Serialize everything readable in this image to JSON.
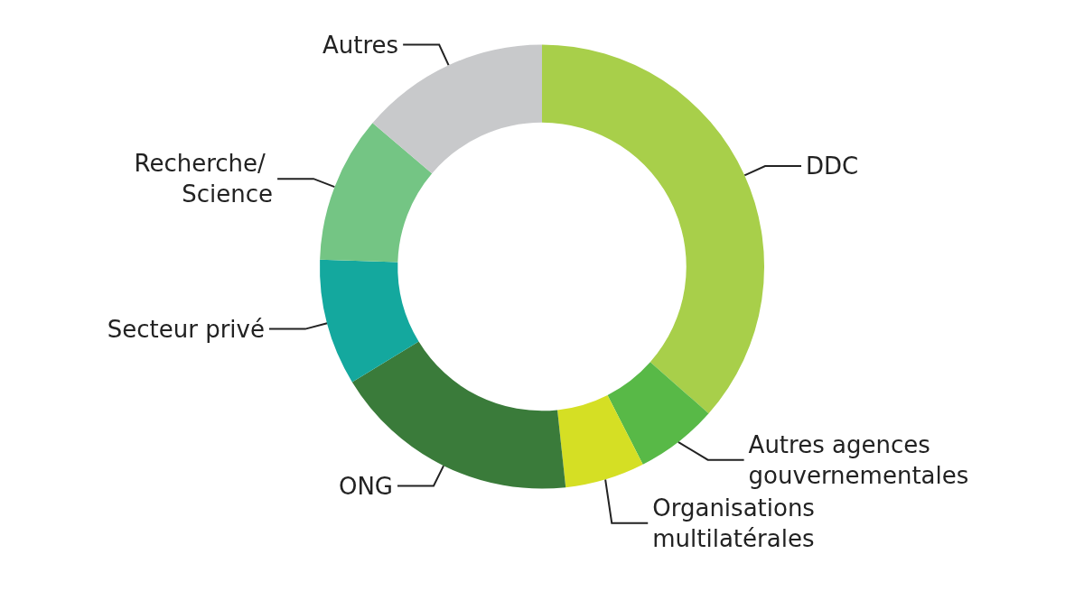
{
  "chart_data": {
    "type": "donut",
    "categories": [
      "DDC",
      "Autres agences gouvernementales",
      "Organisations multilatérales",
      "ONG",
      "Secteur privé",
      "Recherche/ Science",
      "Autres"
    ],
    "values": [
      36.5,
      6,
      5.8,
      18,
      9.2,
      10.7,
      13.8
    ],
    "colors": [
      "#a8cf4a",
      "#58b947",
      "#d5df24",
      "#3a7b3a",
      "#14a89e",
      "#74c584",
      "#c8c9cb"
    ],
    "legend": false
  }
}
